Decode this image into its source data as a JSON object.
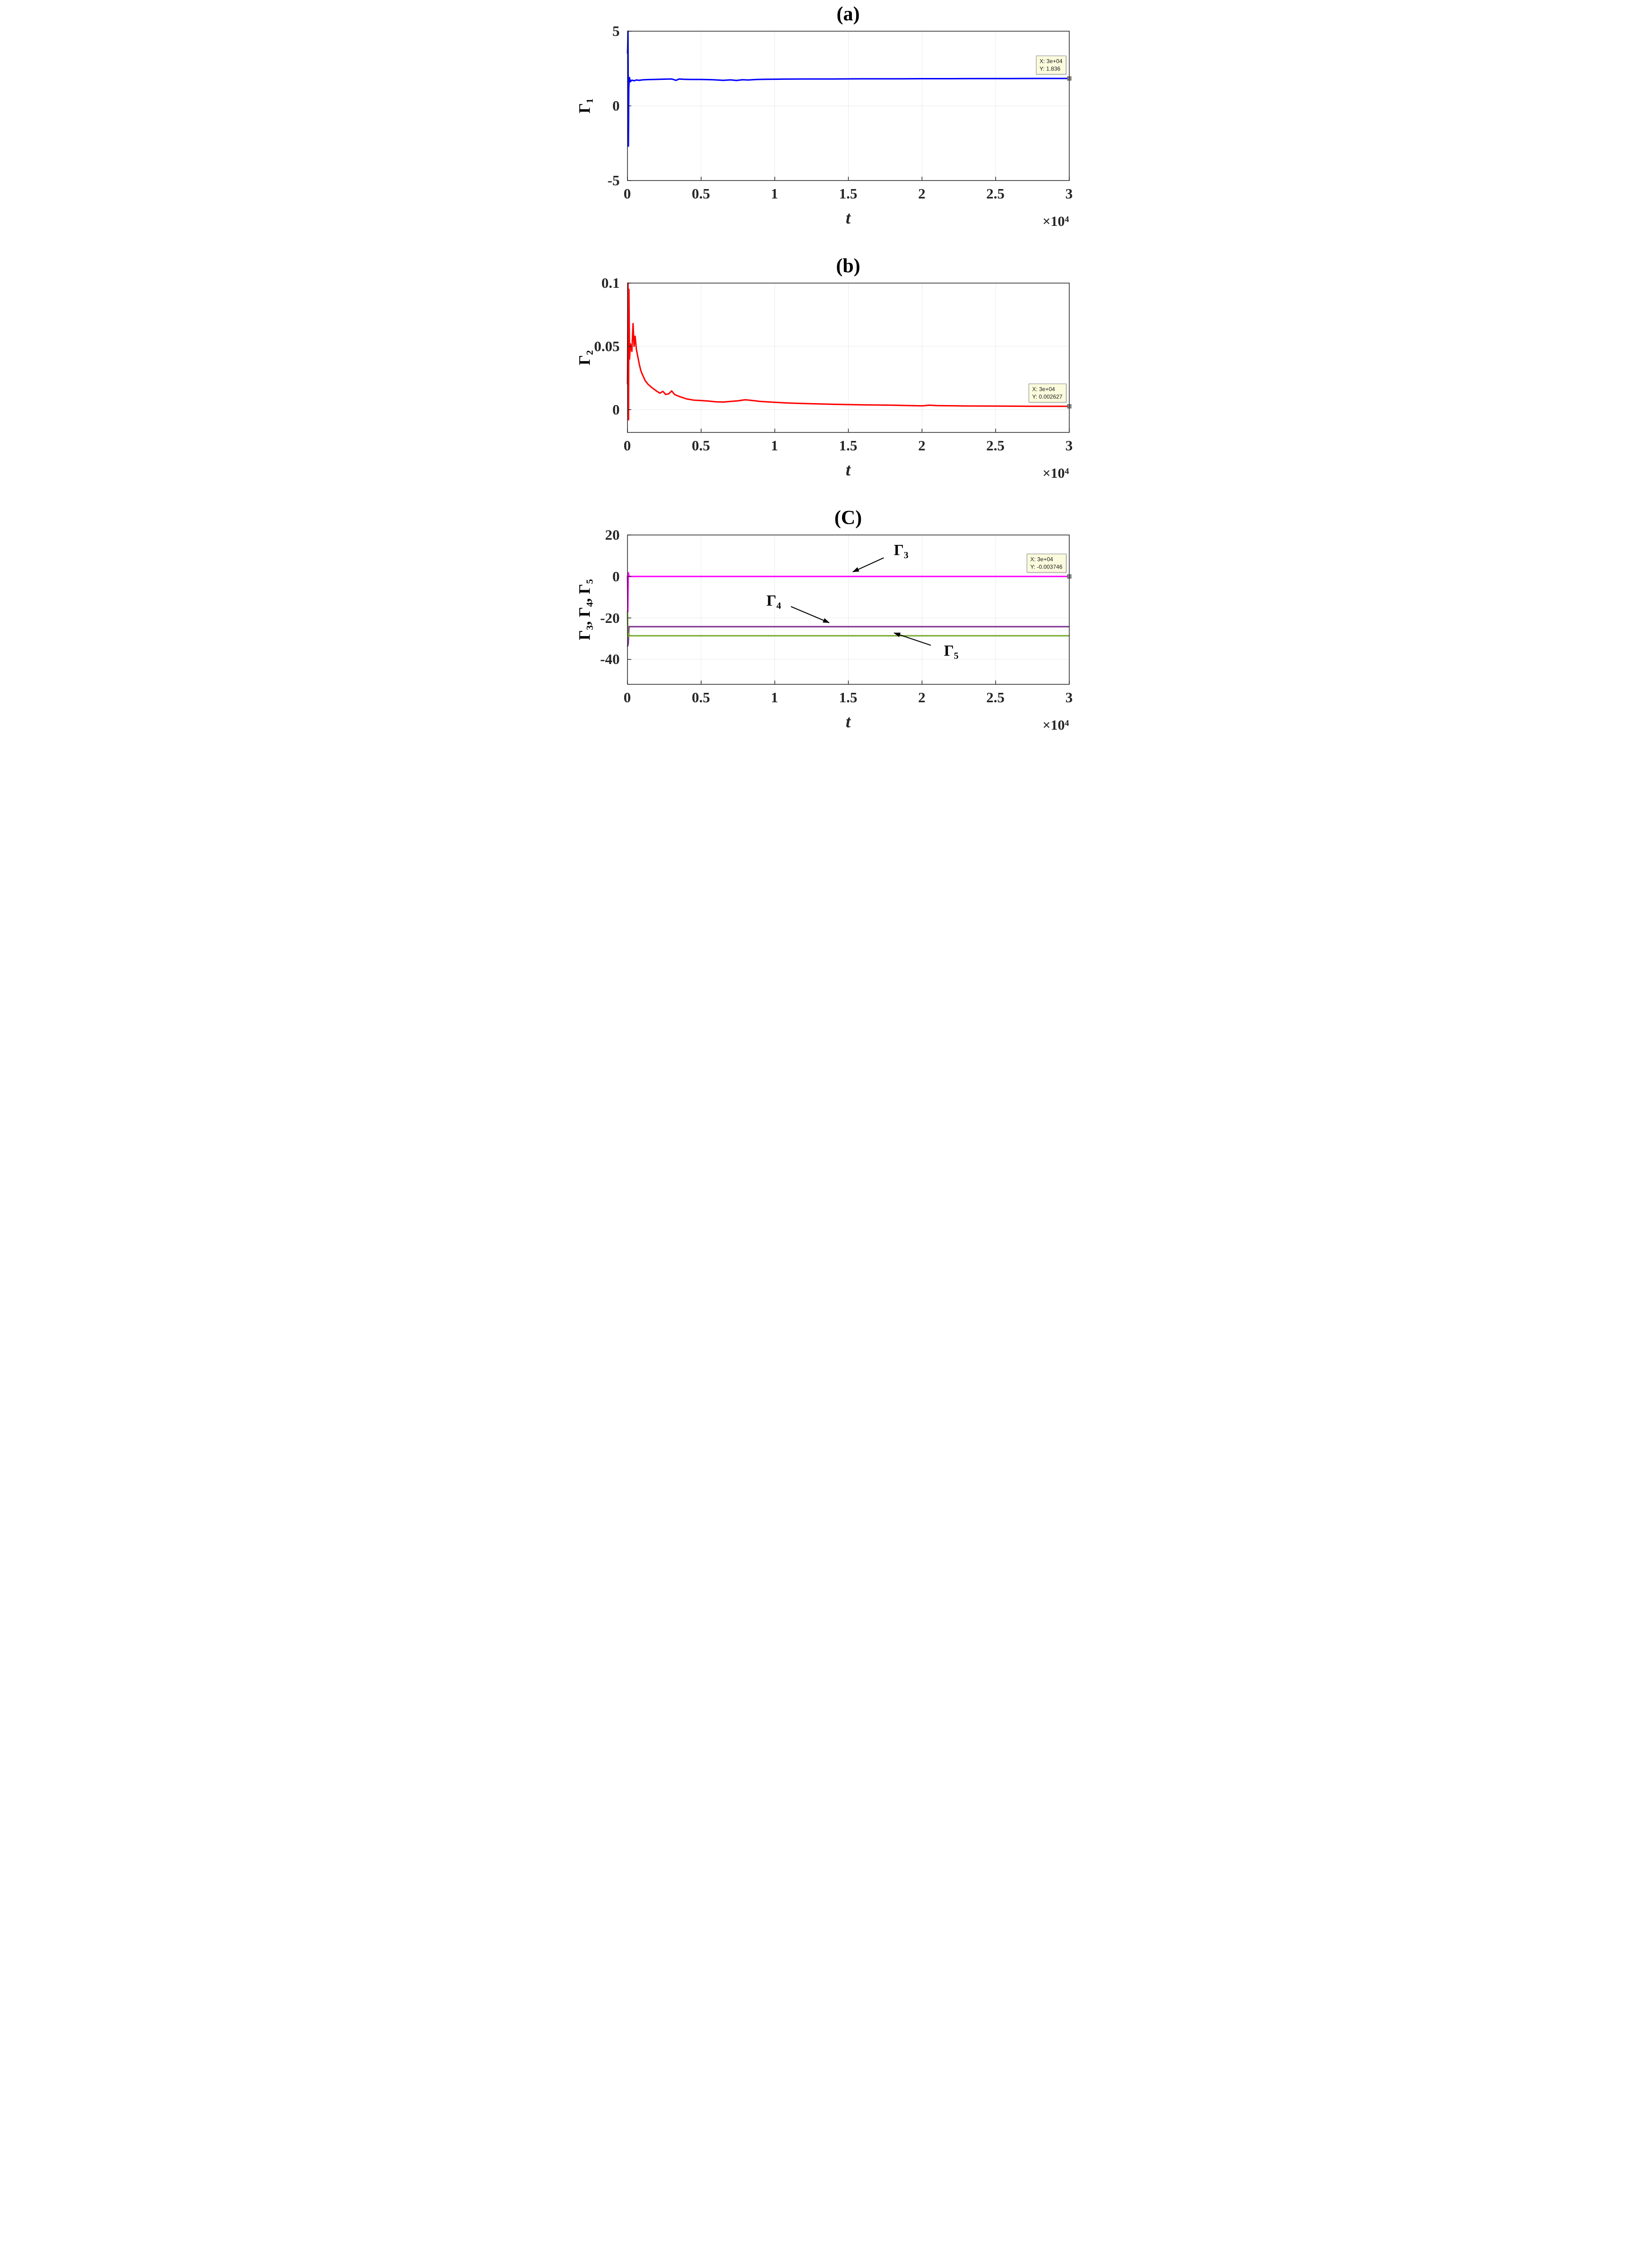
{
  "figure": {
    "background": "#ffffff",
    "axis_color": "#262626"
  },
  "chart_data": [
    {
      "type": "line",
      "panel": "a",
      "title": "(a)",
      "xlabel": "t",
      "x_exponent": "×10⁴",
      "ylabel": "Γ₁",
      "xlim": [
        0,
        30000
      ],
      "ylim": [
        -5,
        5
      ],
      "xticks": [
        0,
        5000,
        10000,
        15000,
        20000,
        25000,
        30000
      ],
      "xtick_labels": [
        "0",
        "0.5",
        "1",
        "1.5",
        "2",
        "2.5",
        "3"
      ],
      "yticks": [
        5,
        0,
        -5
      ],
      "ytick_labels": [
        "5",
        "0",
        "-5"
      ],
      "grid": "faint",
      "legend": "none",
      "series": [
        {
          "name": "Gamma1",
          "label": "Γ₁",
          "color": "#0000FF",
          "x": [
            0,
            40,
            60,
            90,
            130,
            200,
            300,
            450,
            600,
            800,
            1000,
            1400,
            1800,
            2200,
            2600,
            3000,
            3300,
            3500,
            3800,
            4300,
            5000,
            5800,
            6500,
            7000,
            7400,
            7800,
            8200,
            8800,
            9500,
            10500,
            12000,
            14000,
            16000,
            18000,
            20000,
            22000,
            24000,
            26000,
            28000,
            30000
          ],
          "y": [
            3.5,
            5.0,
            -2.7,
            1.2,
            1.9,
            1.62,
            1.72,
            1.68,
            1.73,
            1.71,
            1.74,
            1.76,
            1.77,
            1.78,
            1.79,
            1.8,
            1.71,
            1.8,
            1.78,
            1.77,
            1.77,
            1.75,
            1.71,
            1.74,
            1.7,
            1.75,
            1.73,
            1.77,
            1.78,
            1.79,
            1.8,
            1.8,
            1.81,
            1.81,
            1.82,
            1.82,
            1.83,
            1.83,
            1.835,
            1.836
          ]
        }
      ],
      "datatip": {
        "x": 30000,
        "y": 1.836,
        "line1": "X: 3e+04",
        "line2": "Y: 1.836"
      },
      "annotations": []
    },
    {
      "type": "line",
      "panel": "b",
      "title": "(b)",
      "xlabel": "t",
      "x_exponent": "×10⁴",
      "ylabel": "Γ₂",
      "xlim": [
        0,
        30000
      ],
      "ylim": [
        -0.018,
        0.1
      ],
      "xticks": [
        0,
        5000,
        10000,
        15000,
        20000,
        25000,
        30000
      ],
      "xtick_labels": [
        "0",
        "0.5",
        "1",
        "1.5",
        "2",
        "2.5",
        "3"
      ],
      "yticks": [
        0.1,
        0.05,
        0
      ],
      "ytick_labels": [
        "0.1",
        "0.05",
        "0"
      ],
      "grid": "faint",
      "legend": "none",
      "series": [
        {
          "name": "Gamma2",
          "label": "Γ₂",
          "color": "#FF0000",
          "x": [
            0,
            40,
            70,
            100,
            140,
            200,
            300,
            380,
            450,
            520,
            600,
            700,
            800,
            900,
            1000,
            1200,
            1400,
            1700,
            2000,
            2200,
            2400,
            2600,
            2800,
            3000,
            3200,
            3500,
            4000,
            4500,
            5000,
            5500,
            6000,
            6500,
            7000,
            7500,
            8000,
            8500,
            9000,
            10000,
            11000,
            12000,
            14000,
            16000,
            18000,
            20000,
            20500,
            21000,
            23000,
            25000,
            27000,
            29000,
            30000
          ],
          "y": [
            0.02,
            0.1,
            -0.008,
            0.095,
            0.04,
            0.052,
            0.046,
            0.068,
            0.05,
            0.058,
            0.048,
            0.042,
            0.036,
            0.031,
            0.028,
            0.023,
            0.02,
            0.017,
            0.0145,
            0.013,
            0.0145,
            0.012,
            0.0125,
            0.0148,
            0.012,
            0.0105,
            0.0085,
            0.0075,
            0.0072,
            0.0068,
            0.0062,
            0.006,
            0.0065,
            0.007,
            0.0078,
            0.0072,
            0.0065,
            0.0058,
            0.0052,
            0.0048,
            0.0042,
            0.0038,
            0.0035,
            0.003,
            0.0035,
            0.0032,
            0.0029,
            0.0028,
            0.0027,
            0.00265,
            0.002627
          ]
        }
      ],
      "datatip": {
        "x": 30000,
        "y": 0.002627,
        "line1": "X: 3e+04",
        "line2": "Y: 0.002627"
      },
      "annotations": []
    },
    {
      "type": "line",
      "panel": "c",
      "title": "(C)",
      "xlabel": "t",
      "x_exponent": "×10⁴",
      "ylabel": "Γ₃, Γ₄, Γ₅",
      "xlim": [
        0,
        30000
      ],
      "ylim": [
        -52,
        20
      ],
      "xticks": [
        0,
        5000,
        10000,
        15000,
        20000,
        25000,
        30000
      ],
      "xtick_labels": [
        "0",
        "0.5",
        "1",
        "1.5",
        "2",
        "2.5",
        "3"
      ],
      "yticks": [
        20,
        0,
        -20,
        -40
      ],
      "ytick_labels": [
        "20",
        "0",
        "-20",
        "-40"
      ],
      "grid": "faint",
      "legend": "none",
      "series": [
        {
          "name": "Gamma4",
          "label": "Γ₄",
          "color": "#7E2F8E",
          "x": [
            0,
            50,
            100,
            180,
            30000
          ],
          "y": [
            -33.8,
            -32.5,
            -24.2,
            -24.2,
            -24.2
          ]
        },
        {
          "name": "Gamma5",
          "label": "Γ₅",
          "color": "#77AC30",
          "x": [
            0,
            25,
            60,
            160,
            30000
          ],
          "y": [
            -16.5,
            -29.2,
            -27.6,
            -28.6,
            -28.6
          ]
        },
        {
          "name": "Gamma3",
          "label": "Γ₃",
          "color": "#FF00FF",
          "x": [
            0,
            25,
            55,
            110,
            300,
            30000
          ],
          "y": [
            0.3,
            -17,
            1.8,
            -0.004,
            -0.004,
            -0.004
          ]
        }
      ],
      "datatip": {
        "x": 30000,
        "y": -0.003746,
        "line1": "X: 3e+04",
        "line2": "Y: -0.003746"
      },
      "annotations": [
        {
          "name": "Gamma3",
          "text": "Γ₃",
          "text_x": 18600,
          "text_y": 12.5,
          "ax": 17400,
          "ay": 9,
          "bx": 15300,
          "by": 2.2
        },
        {
          "name": "Gamma4",
          "text": "Γ₄",
          "text_x": 9950,
          "text_y": -11.8,
          "ax": 11100,
          "ay": -14.5,
          "bx": 13700,
          "by": -22.3
        },
        {
          "name": "Gamma5",
          "text": "Γ₅",
          "text_x": 22000,
          "text_y": -36,
          "ax": 20600,
          "ay": -33.2,
          "bx": 18100,
          "by": -27.2
        }
      ]
    }
  ]
}
